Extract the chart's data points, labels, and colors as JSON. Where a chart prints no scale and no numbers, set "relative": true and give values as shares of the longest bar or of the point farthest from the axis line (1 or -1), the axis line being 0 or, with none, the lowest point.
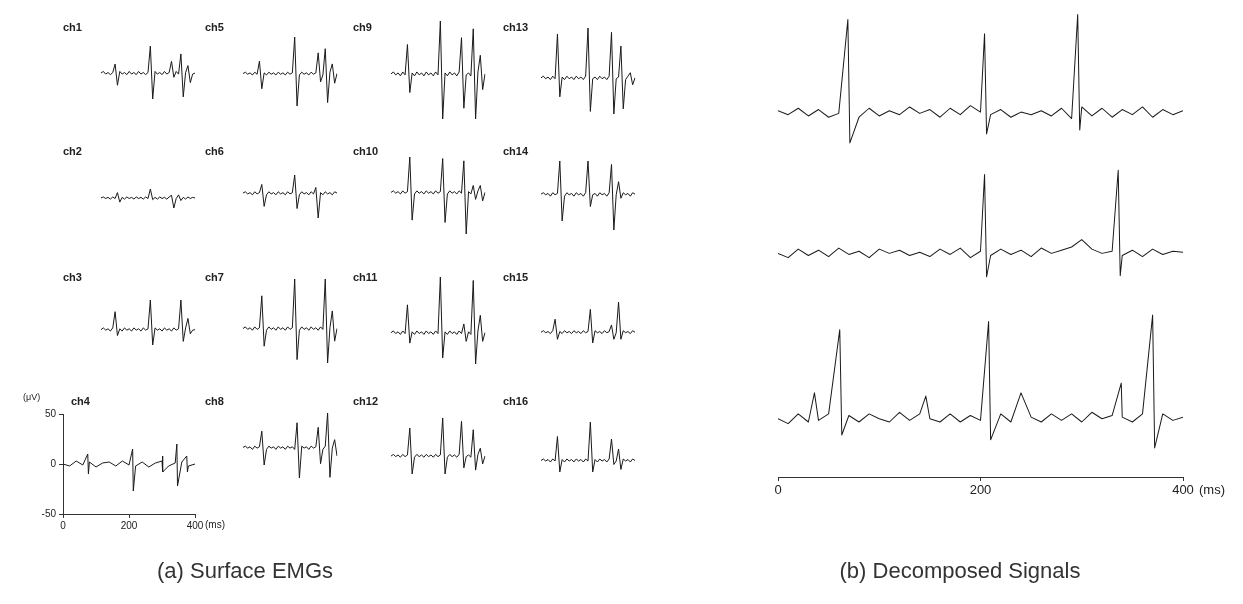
{
  "chart_data": [
    {
      "type": "line",
      "title": "ch1",
      "relative": true,
      "tick_labels": false,
      "categories": [
        null,
        null,
        null,
        null,
        null,
        null,
        null,
        null,
        null,
        null,
        null,
        null,
        null,
        null,
        null,
        null,
        null,
        null,
        null,
        null,
        null,
        null,
        null,
        null,
        null,
        null,
        null,
        null,
        null,
        null,
        null,
        null,
        null,
        null,
        null,
        null,
        null,
        null,
        null,
        null,
        null
      ],
      "series": [
        {
          "color": "#1a1a1a",
          "values": [
            0.49,
            0.52,
            0.47,
            0.5,
            0.46,
            0.5,
            0.66,
            0.26,
            0.52,
            0.47,
            0.5,
            0.46,
            0.52,
            0.47,
            0.5,
            0.46,
            0.52,
            0.47,
            0.5,
            0.46,
            0.5,
            1,
            0,
            0.52,
            0.47,
            0.5,
            0.46,
            0.52,
            0.47,
            0.5,
            0.71,
            0.41,
            0.52,
            0.47,
            0.85,
            0.04,
            0.5,
            0.63,
            0.31,
            0.47,
            0.49
          ]
        }
      ]
    },
    {
      "type": "line",
      "title": "ch2",
      "relative": true,
      "tick_labels": false,
      "categories": [
        null,
        null,
        null,
        null,
        null,
        null,
        null,
        null,
        null,
        null,
        null,
        null,
        null,
        null,
        null,
        null,
        null,
        null,
        null,
        null,
        null,
        null,
        null,
        null,
        null,
        null,
        null,
        null,
        null,
        null,
        null,
        null,
        null,
        null,
        null,
        null,
        null,
        null,
        null,
        null,
        null
      ],
      "series": [
        {
          "color": "#1a1a1a",
          "values": [
            0.53,
            0.58,
            0.5,
            0.56,
            0.47,
            0.58,
            0.5,
            0.81,
            0.31,
            0.56,
            0.47,
            0.58,
            0.5,
            0.56,
            0.47,
            0.58,
            0.5,
            0.56,
            0.47,
            0.58,
            0.5,
            1,
            0.44,
            0.56,
            0.47,
            0.58,
            0.5,
            0.56,
            0.47,
            0.58,
            0.67,
            0,
            0.5,
            0.69,
            0.39,
            0.56,
            0.47,
            0.58,
            0.5,
            0.56,
            0.53
          ]
        }
      ]
    },
    {
      "type": "line",
      "title": "ch3",
      "relative": true,
      "tick_labels": false,
      "categories": [
        null,
        null,
        null,
        null,
        null,
        null,
        null,
        null,
        null,
        null,
        null,
        null,
        null,
        null,
        null,
        null,
        null,
        null,
        null,
        null,
        null,
        null,
        null,
        null,
        null,
        null,
        null,
        null,
        null,
        null,
        null,
        null,
        null,
        null,
        null,
        null,
        null,
        null,
        null,
        null,
        null
      ],
      "series": [
        {
          "color": "#1a1a1a",
          "values": [
            0.34,
            0.38,
            0.33,
            0.36,
            0.31,
            0.38,
            0.74,
            0.21,
            0.36,
            0.31,
            0.38,
            0.33,
            0.36,
            0.31,
            0.38,
            0.33,
            0.36,
            0.31,
            0.38,
            0.33,
            0.36,
            1,
            0,
            0.38,
            0.33,
            0.36,
            0.31,
            0.38,
            0.33,
            0.36,
            0.31,
            0.38,
            0.33,
            0.36,
            1,
            0.08,
            0.38,
            0.59,
            0.25,
            0.33,
            0.34
          ]
        }
      ]
    },
    {
      "type": "line",
      "title": "ch4",
      "xlabel": "(ms)",
      "ylabel": "(μV)",
      "xlim": [
        0,
        400
      ],
      "ylim": [
        -50,
        50
      ],
      "xticks": [
        0,
        200,
        400
      ],
      "yticks": [
        -50,
        0,
        50
      ],
      "annotations": [
        "(a) Surface EMGs"
      ],
      "series": [
        {
          "color": "#1a1a1a",
          "x": [
            0,
            20,
            40,
            60,
            75,
            77,
            80,
            100,
            120,
            140,
            160,
            180,
            200,
            211,
            213,
            220,
            240,
            260,
            280,
            300,
            301,
            303,
            320,
            340,
            345,
            347,
            360,
            375,
            377,
            380,
            400
          ],
          "values": [
            0,
            -2,
            3,
            -1,
            10,
            -10,
            2,
            -3,
            1,
            2,
            -2,
            3,
            -1,
            15,
            -27,
            -2,
            2,
            -3,
            1,
            3,
            8,
            -8,
            -2,
            1,
            20,
            -22,
            2,
            8,
            -8,
            -2,
            0
          ]
        }
      ]
    },
    {
      "type": "line",
      "title": "ch5",
      "relative": true,
      "tick_labels": false,
      "categories": [
        null,
        null,
        null,
        null,
        null,
        null,
        null,
        null,
        null,
        null,
        null,
        null,
        null,
        null,
        null,
        null,
        null,
        null,
        null,
        null,
        null,
        null,
        null,
        null,
        null,
        null,
        null,
        null,
        null,
        null,
        null,
        null,
        null,
        null,
        null,
        null,
        null,
        null,
        null,
        null,
        null
      ],
      "series": [
        {
          "color": "#1a1a1a",
          "values": [
            0.47,
            0.49,
            0.46,
            0.48,
            0.45,
            0.49,
            0.46,
            0.65,
            0.25,
            0.48,
            0.45,
            0.49,
            0.46,
            0.48,
            0.45,
            0.49,
            0.46,
            0.48,
            0.45,
            0.49,
            0.46,
            0.48,
            1,
            0,
            0.45,
            0.49,
            0.46,
            0.48,
            0.45,
            0.49,
            0.46,
            0.48,
            0.77,
            0.35,
            0.45,
            0.83,
            0.05,
            0.49,
            0.61,
            0.33,
            0.47
          ]
        }
      ]
    },
    {
      "type": "line",
      "title": "ch6",
      "relative": true,
      "tick_labels": false,
      "categories": [
        null,
        null,
        null,
        null,
        null,
        null,
        null,
        null,
        null,
        null,
        null,
        null,
        null,
        null,
        null,
        null,
        null,
        null,
        null,
        null,
        null,
        null,
        null,
        null,
        null,
        null,
        null,
        null,
        null,
        null,
        null,
        null,
        null,
        null,
        null,
        null,
        null,
        null,
        null,
        null,
        null
      ],
      "series": [
        {
          "color": "#1a1a1a",
          "values": [
            0.58,
            0.61,
            0.56,
            0.59,
            0.54,
            0.61,
            0.56,
            0.59,
            0.78,
            0.27,
            0.54,
            0.61,
            0.56,
            0.59,
            0.54,
            0.61,
            0.56,
            0.59,
            0.54,
            0.61,
            0.56,
            0.59,
            1,
            0.22,
            0.54,
            0.61,
            0.56,
            0.59,
            0.54,
            0.61,
            0.56,
            0.71,
            0,
            0.59,
            0.54,
            0.61,
            0.56,
            0.59,
            0.54,
            0.61,
            0.58
          ]
        }
      ]
    },
    {
      "type": "line",
      "title": "ch7",
      "relative": true,
      "tick_labels": false,
      "categories": [
        null,
        null,
        null,
        null,
        null,
        null,
        null,
        null,
        null,
        null,
        null,
        null,
        null,
        null,
        null,
        null,
        null,
        null,
        null,
        null,
        null,
        null,
        null,
        null,
        null,
        null,
        null,
        null,
        null,
        null,
        null,
        null,
        null,
        null,
        null,
        null,
        null,
        null,
        null,
        null,
        null
      ],
      "series": [
        {
          "color": "#1a1a1a",
          "values": [
            0.41,
            0.43,
            0.4,
            0.42,
            0.39,
            0.43,
            0.4,
            0.42,
            0.8,
            0.2,
            0.39,
            0.43,
            0.4,
            0.42,
            0.39,
            0.43,
            0.4,
            0.42,
            0.39,
            0.43,
            0.4,
            0.42,
            1,
            0.04,
            0.39,
            0.43,
            0.4,
            0.42,
            0.39,
            0.43,
            0.4,
            0.42,
            0.39,
            0.43,
            0.4,
            1,
            0,
            0.42,
            0.62,
            0.26,
            0.41
          ]
        }
      ]
    },
    {
      "type": "line",
      "title": "ch8",
      "relative": true,
      "tick_labels": false,
      "categories": [
        null,
        null,
        null,
        null,
        null,
        null,
        null,
        null,
        null,
        null,
        null,
        null,
        null,
        null,
        null,
        null,
        null,
        null,
        null,
        null,
        null,
        null,
        null,
        null,
        null,
        null,
        null,
        null,
        null,
        null,
        null,
        null,
        null,
        null,
        null,
        null,
        null,
        null,
        null,
        null,
        null
      ],
      "series": [
        {
          "color": "#1a1a1a",
          "values": [
            0.47,
            0.49,
            0.46,
            0.48,
            0.44,
            0.49,
            0.46,
            0.48,
            0.72,
            0.2,
            0.44,
            0.49,
            0.46,
            0.48,
            0.44,
            0.49,
            0.46,
            0.48,
            0.44,
            0.49,
            0.46,
            0.48,
            0.44,
            0.85,
            0,
            0.49,
            0.46,
            0.48,
            0.44,
            0.49,
            0.46,
            0.48,
            0.78,
            0.22,
            0.44,
            0.49,
            1,
            0.01,
            0.46,
            0.59,
            0.34
          ]
        }
      ]
    },
    {
      "type": "line",
      "title": "ch9",
      "relative": true,
      "tick_labels": false,
      "categories": [
        null,
        null,
        null,
        null,
        null,
        null,
        null,
        null,
        null,
        null,
        null,
        null,
        null,
        null,
        null,
        null,
        null,
        null,
        null,
        null,
        null,
        null,
        null,
        null,
        null,
        null,
        null,
        null,
        null,
        null,
        null,
        null,
        null,
        null,
        null,
        null,
        null,
        null,
        null,
        null,
        null
      ],
      "series": [
        {
          "color": "#1a1a1a",
          "values": [
            0.46,
            0.48,
            0.45,
            0.47,
            0.44,
            0.48,
            0.45,
            0.76,
            0.27,
            0.47,
            0.44,
            0.48,
            0.45,
            0.47,
            0.44,
            0.48,
            0.45,
            0.47,
            0.44,
            0.48,
            0.45,
            1,
            0,
            0.47,
            0.44,
            0.48,
            0.45,
            0.47,
            0.44,
            0.48,
            0.83,
            0.11,
            0.45,
            0.47,
            0.44,
            0.92,
            0,
            0.48,
            0.65,
            0.3,
            0.46
          ]
        }
      ]
    },
    {
      "type": "line",
      "title": "ch10",
      "relative": true,
      "tick_labels": false,
      "categories": [
        null,
        null,
        null,
        null,
        null,
        null,
        null,
        null,
        null,
        null,
        null,
        null,
        null,
        null,
        null,
        null,
        null,
        null,
        null,
        null,
        null,
        null,
        null,
        null,
        null,
        null,
        null,
        null,
        null,
        null,
        null,
        null,
        null,
        null,
        null,
        null,
        null,
        null,
        null,
        null,
        null
      ],
      "series": [
        {
          "color": "#1a1a1a",
          "values": [
            0.54,
            0.56,
            0.53,
            0.55,
            0.52,
            0.56,
            0.53,
            0.55,
            1,
            0.18,
            0.52,
            0.56,
            0.53,
            0.55,
            0.52,
            0.56,
            0.53,
            0.55,
            0.52,
            0.56,
            0.53,
            0.55,
            0.98,
            0.15,
            0.52,
            0.56,
            0.53,
            0.55,
            0.52,
            0.56,
            0.53,
            0.95,
            0,
            0.55,
            0.52,
            0.63,
            0.45,
            0.56,
            0.63,
            0.43,
            0.54
          ]
        }
      ]
    },
    {
      "type": "line",
      "title": "ch11",
      "relative": true,
      "tick_labels": false,
      "categories": [
        null,
        null,
        null,
        null,
        null,
        null,
        null,
        null,
        null,
        null,
        null,
        null,
        null,
        null,
        null,
        null,
        null,
        null,
        null,
        null,
        null,
        null,
        null,
        null,
        null,
        null,
        null,
        null,
        null,
        null,
        null,
        null,
        null,
        null,
        null,
        null,
        null,
        null,
        null,
        null,
        null
      ],
      "series": [
        {
          "color": "#1a1a1a",
          "values": [
            0.36,
            0.38,
            0.35,
            0.37,
            0.34,
            0.38,
            0.35,
            0.68,
            0.24,
            0.37,
            0.34,
            0.38,
            0.35,
            0.37,
            0.34,
            0.38,
            0.35,
            0.37,
            0.34,
            0.38,
            0.35,
            1,
            0.07,
            0.37,
            0.34,
            0.38,
            0.35,
            0.37,
            0.34,
            0.38,
            0.35,
            0.46,
            0.26,
            0.37,
            0.34,
            0.96,
            0,
            0.38,
            0.56,
            0.26,
            0.36
          ]
        }
      ]
    },
    {
      "type": "line",
      "title": "ch12",
      "relative": true,
      "tick_labels": false,
      "categories": [
        null,
        null,
        null,
        null,
        null,
        null,
        null,
        null,
        null,
        null,
        null,
        null,
        null,
        null,
        null,
        null,
        null,
        null,
        null,
        null,
        null,
        null,
        null,
        null,
        null,
        null,
        null,
        null,
        null,
        null,
        null,
        null,
        null,
        null,
        null,
        null,
        null,
        null,
        null,
        null,
        null
      ],
      "series": [
        {
          "color": "#1a1a1a",
          "values": [
            0.32,
            0.35,
            0.31,
            0.34,
            0.3,
            0.35,
            0.31,
            0.34,
            0.82,
            0,
            0.3,
            0.35,
            0.31,
            0.34,
            0.3,
            0.35,
            0.31,
            0.34,
            0.3,
            0.35,
            0.31,
            0.34,
            1,
            0,
            0.3,
            0.35,
            0.31,
            0.34,
            0.3,
            0.35,
            0.94,
            0.11,
            0.31,
            0.34,
            0.3,
            0.79,
            0.07,
            0.35,
            0.46,
            0.18,
            0.32
          ]
        }
      ]
    },
    {
      "type": "line",
      "title": "ch13",
      "relative": true,
      "tick_labels": false,
      "categories": [
        null,
        null,
        null,
        null,
        null,
        null,
        null,
        null,
        null,
        null,
        null,
        null,
        null,
        null,
        null,
        null,
        null,
        null,
        null,
        null,
        null,
        null,
        null,
        null,
        null,
        null,
        null,
        null,
        null,
        null,
        null,
        null,
        null,
        null,
        null,
        null,
        null,
        null,
        null,
        null,
        null
      ],
      "series": [
        {
          "color": "#1a1a1a",
          "values": [
            0.42,
            0.44,
            0.41,
            0.43,
            0.4,
            0.44,
            0.41,
            0.93,
            0.2,
            0.43,
            0.4,
            0.44,
            0.41,
            0.43,
            0.4,
            0.44,
            0.41,
            0.43,
            0.4,
            0.44,
            1,
            0.03,
            0.41,
            0.43,
            0.4,
            0.44,
            0.41,
            0.43,
            0.4,
            0.44,
            0.95,
            0,
            0.41,
            0.43,
            0.79,
            0.06,
            0.4,
            0.44,
            0.48,
            0.34,
            0.42
          ]
        }
      ]
    },
    {
      "type": "line",
      "title": "ch14",
      "relative": true,
      "tick_labels": false,
      "categories": [
        null,
        null,
        null,
        null,
        null,
        null,
        null,
        null,
        null,
        null,
        null,
        null,
        null,
        null,
        null,
        null,
        null,
        null,
        null,
        null,
        null,
        null,
        null,
        null,
        null,
        null,
        null,
        null,
        null,
        null,
        null,
        null,
        null,
        null,
        null,
        null,
        null,
        null,
        null,
        null,
        null
      ],
      "series": [
        {
          "color": "#1a1a1a",
          "values": [
            0.52,
            0.54,
            0.51,
            0.53,
            0.49,
            0.54,
            0.51,
            0.53,
            1,
            0.13,
            0.49,
            0.54,
            0.51,
            0.53,
            0.49,
            0.54,
            0.51,
            0.53,
            0.49,
            0.54,
            1,
            0.34,
            0.51,
            0.53,
            0.49,
            0.54,
            0.51,
            0.53,
            0.49,
            0.54,
            0.95,
            0,
            0.51,
            0.7,
            0.46,
            0.54,
            0.51,
            0.53,
            0.49,
            0.54,
            0.52
          ]
        }
      ]
    },
    {
      "type": "line",
      "title": "ch15",
      "relative": true,
      "tick_labels": false,
      "categories": [
        null,
        null,
        null,
        null,
        null,
        null,
        null,
        null,
        null,
        null,
        null,
        null,
        null,
        null,
        null,
        null,
        null,
        null,
        null,
        null,
        null,
        null,
        null,
        null,
        null,
        null,
        null,
        null,
        null,
        null,
        null,
        null,
        null,
        null,
        null,
        null,
        null,
        null,
        null,
        null,
        null
      ],
      "series": [
        {
          "color": "#1a1a1a",
          "values": [
            0.26,
            0.3,
            0.25,
            0.28,
            0.23,
            0.3,
            0.58,
            0.09,
            0.28,
            0.23,
            0.3,
            0.25,
            0.28,
            0.23,
            0.3,
            0.25,
            0.28,
            0.23,
            0.3,
            0.25,
            0.28,
            0.82,
            0,
            0.3,
            0.25,
            0.28,
            0.23,
            0.3,
            0.25,
            0.28,
            0.44,
            0.09,
            0.25,
            1,
            0.09,
            0.3,
            0.25,
            0.28,
            0.23,
            0.3,
            0.26
          ]
        }
      ]
    },
    {
      "type": "line",
      "title": "ch16",
      "relative": true,
      "tick_labels": false,
      "categories": [
        null,
        null,
        null,
        null,
        null,
        null,
        null,
        null,
        null,
        null,
        null,
        null,
        null,
        null,
        null,
        null,
        null,
        null,
        null,
        null,
        null,
        null,
        null,
        null,
        null,
        null,
        null,
        null,
        null,
        null,
        null,
        null,
        null,
        null,
        null,
        null,
        null,
        null,
        null,
        null,
        null
      ],
      "series": [
        {
          "color": "#1a1a1a",
          "values": [
            0.23,
            0.26,
            0.22,
            0.25,
            0.2,
            0.26,
            0.22,
            0.71,
            0,
            0.25,
            0.2,
            0.26,
            0.22,
            0.25,
            0.2,
            0.26,
            0.22,
            0.25,
            0.2,
            0.26,
            0.22,
            1,
            0,
            0.25,
            0.2,
            0.26,
            0.22,
            0.25,
            0.2,
            0.26,
            0.66,
            0.15,
            0.22,
            0.46,
            0.05,
            0.26,
            0.22,
            0.25,
            0.2,
            0.26,
            0.23
          ]
        }
      ]
    },
    {
      "type": "line",
      "relative": true,
      "xlim": [
        0,
        400
      ],
      "tick_labels": false,
      "series": [
        {
          "color": "#1a1a1a",
          "x": [
            0,
            10,
            20,
            30,
            40,
            50,
            60,
            69,
            71,
            80,
            90,
            100,
            110,
            120,
            130,
            140,
            150,
            160,
            170,
            180,
            190,
            200,
            204,
            206,
            210,
            220,
            230,
            240,
            250,
            260,
            270,
            280,
            290,
            296,
            298,
            300,
            310,
            320,
            330,
            340,
            350,
            360,
            370,
            380,
            390,
            400
          ],
          "values": [
            0.25,
            0.22,
            0.27,
            0.21,
            0.26,
            0.2,
            0.23,
            0.96,
            0,
            0.2,
            0.27,
            0.21,
            0.25,
            0.22,
            0.28,
            0.23,
            0.26,
            0.2,
            0.27,
            0.22,
            0.29,
            0.24,
            0.85,
            0.07,
            0.22,
            0.26,
            0.2,
            0.24,
            0.22,
            0.25,
            0.21,
            0.27,
            0.19,
            1,
            0.1,
            0.28,
            0.21,
            0.27,
            0.2,
            0.26,
            0.22,
            0.28,
            0.2,
            0.26,
            0.22,
            0.25
          ]
        }
      ]
    },
    {
      "type": "line",
      "relative": true,
      "xlim": [
        0,
        400
      ],
      "tick_labels": false,
      "series": [
        {
          "color": "#1a1a1a",
          "x": [
            0,
            10,
            20,
            30,
            40,
            50,
            60,
            70,
            80,
            90,
            100,
            110,
            120,
            130,
            140,
            150,
            160,
            170,
            180,
            190,
            200,
            204,
            206,
            210,
            220,
            230,
            240,
            250,
            260,
            270,
            280,
            290,
            300,
            310,
            320,
            330,
            336,
            338,
            340,
            350,
            360,
            370,
            380,
            390,
            400
          ],
          "values": [
            0.22,
            0.18,
            0.26,
            0.2,
            0.25,
            0.19,
            0.27,
            0.21,
            0.24,
            0.18,
            0.26,
            0.22,
            0.25,
            0.2,
            0.23,
            0.19,
            0.26,
            0.21,
            0.27,
            0.18,
            0.24,
            0.96,
            0,
            0.2,
            0.26,
            0.21,
            0.25,
            0.19,
            0.27,
            0.22,
            0.25,
            0.28,
            0.35,
            0.26,
            0.22,
            0.24,
            1,
            0.01,
            0.2,
            0.25,
            0.19,
            0.26,
            0.21,
            0.24,
            0.23
          ]
        }
      ]
    },
    {
      "type": "line",
      "relative": true,
      "xlim": [
        0,
        400
      ],
      "xticks": [
        0,
        200,
        400
      ],
      "xlabel": "(ms)",
      "tick_labels": "x",
      "annotations": [
        "(b) Decomposed Signals"
      ],
      "series": [
        {
          "color": "#1a1a1a",
          "x": [
            0,
            10,
            20,
            30,
            36,
            40,
            50,
            61,
            63,
            70,
            80,
            90,
            100,
            110,
            120,
            130,
            140,
            146,
            150,
            160,
            170,
            180,
            190,
            200,
            208,
            210,
            220,
            230,
            240,
            250,
            260,
            270,
            280,
            290,
            300,
            310,
            320,
            330,
            339,
            340,
            350,
            360,
            370,
            372,
            380,
            390,
            400
          ],
          "values": [
            0.36,
            0.33,
            0.39,
            0.34,
            0.52,
            0.35,
            0.39,
            0.91,
            0.26,
            0.38,
            0.34,
            0.39,
            0.36,
            0.34,
            0.4,
            0.35,
            0.39,
            0.5,
            0.36,
            0.34,
            0.39,
            0.34,
            0.38,
            0.35,
            0.96,
            0.23,
            0.39,
            0.34,
            0.52,
            0.37,
            0.34,
            0.39,
            0.35,
            0.39,
            0.34,
            0.4,
            0.36,
            0.38,
            0.58,
            0.37,
            0.34,
            0.39,
            1,
            0.18,
            0.39,
            0.35,
            0.37
          ]
        }
      ]
    }
  ]
}
